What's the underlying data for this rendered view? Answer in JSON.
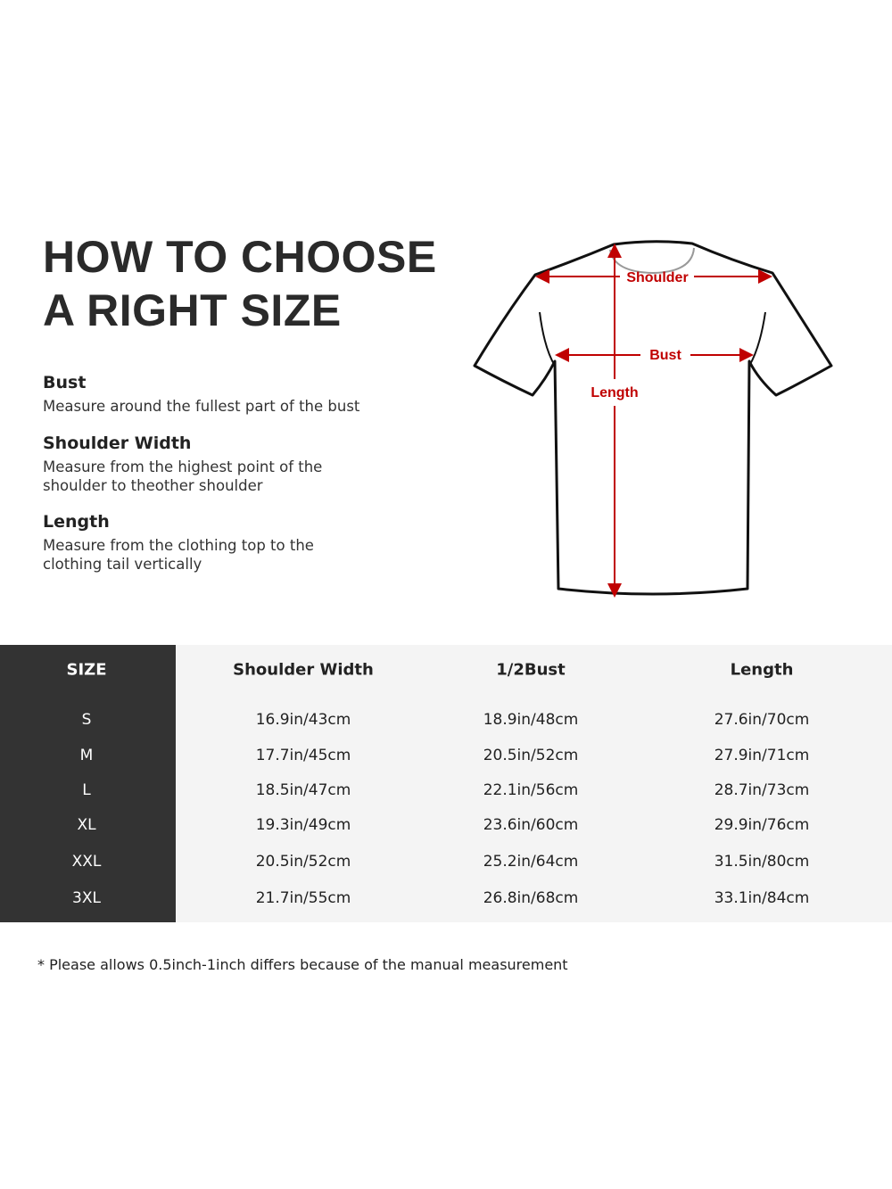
{
  "heading": {
    "line1": "HOW TO CHOOSE",
    "line2": "A RIGHT SIZE"
  },
  "definitions": [
    {
      "term": "Bust",
      "desc": [
        "Measure around the fullest part of the bust"
      ]
    },
    {
      "term": "Shoulder Width",
      "desc": [
        "Measure from the highest point of the",
        "shoulder to theother shoulder"
      ]
    },
    {
      "term": "Length",
      "desc": [
        "Measure from the clothing top to the",
        "clothing tail vertically"
      ]
    }
  ],
  "diagram": {
    "labels": {
      "shoulder": "Shoulder",
      "bust": "Bust",
      "length": "Length"
    },
    "arrow_color": "#c00000",
    "outline_color": "#111111"
  },
  "table": {
    "headers": [
      "SIZE",
      "Shoulder Width",
      "1/2Bust",
      "Length"
    ],
    "rows": [
      [
        "S",
        "16.9in/43cm",
        "18.9in/48cm",
        "27.6in/70cm"
      ],
      [
        "M",
        "17.7in/45cm",
        "20.5in/52cm",
        "27.9in/71cm"
      ],
      [
        "L",
        "18.5in/47cm",
        "22.1in/56cm",
        "28.7in/73cm"
      ],
      [
        "XL",
        "19.3in/49cm",
        "23.6in/60cm",
        "29.9in/76cm"
      ],
      [
        "XXL",
        "20.5in/52cm",
        "25.2in/64cm",
        "31.5in/80cm"
      ],
      [
        "3XL",
        "21.7in/55cm",
        "26.8in/68cm",
        "33.1in/84cm"
      ]
    ],
    "colors": {
      "size_column": "#333333",
      "body": "#f4f4f4"
    }
  },
  "note": "* Please allows 0.5inch-1inch differs because of the  manual measurement"
}
